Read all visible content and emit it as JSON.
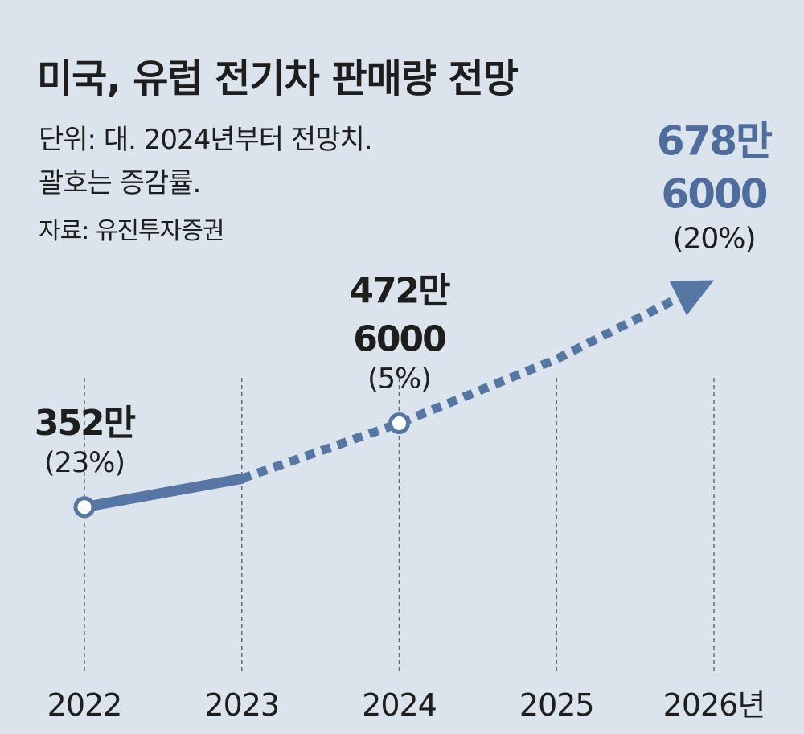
{
  "header": {
    "title": "미국, 유럽 전기차 판매량 전망",
    "unit_note": "단위: 대. 2024년부터 전망치.",
    "paren_note": "괄호는 증감률.",
    "source": "자료: 유진투자증권"
  },
  "colors": {
    "background": "#dbe3ec",
    "line": "#5676a3",
    "highlight": "#4e6d9c",
    "text": "#1e1e1e"
  },
  "chart_data": {
    "type": "line",
    "x": [
      "2022",
      "2023",
      "2024",
      "2025",
      "2026년"
    ],
    "series": [
      {
        "values": [
          3520000,
          3930000,
          4726000,
          5650000,
          6786000
        ],
        "projected_from_index": 1
      }
    ],
    "data_labels": [
      {
        "index": 0,
        "value": "352만",
        "change": "(23%)"
      },
      {
        "index": 2,
        "value": "472만",
        "value2": "6000",
        "change": "(5%)"
      },
      {
        "index": 4,
        "value": "678만",
        "value2": "6000",
        "change": "(20%)"
      }
    ],
    "markers_at": [
      0,
      2
    ],
    "grid": "vertical-dashed",
    "ylim": [
      2800000,
      7000000
    ]
  }
}
